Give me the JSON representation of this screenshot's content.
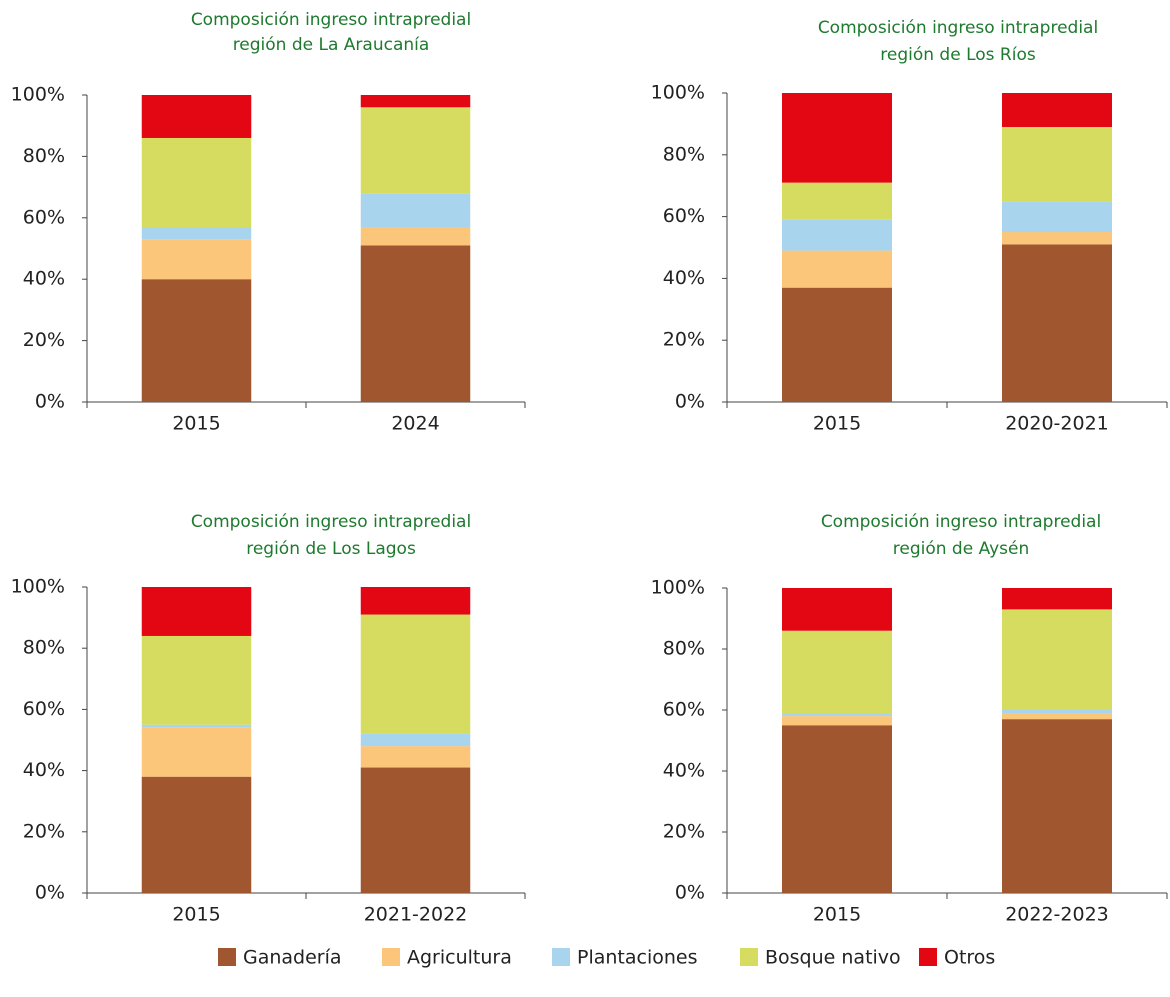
{
  "chart_data": [
    {
      "type": "stacked-bar",
      "title": [
        "Composición ingreso intrapredial",
        "región de La Araucanía"
      ],
      "categories": [
        "2015",
        "2024"
      ],
      "series": [
        {
          "name": "Ganadería",
          "color": "#a0572f",
          "values": [
            40,
            51
          ]
        },
        {
          "name": "Agricultura",
          "color": "#fbc57a",
          "values": [
            13,
            6
          ]
        },
        {
          "name": "Plantaciones",
          "color": "#a9d4ee",
          "values": [
            4,
            11
          ]
        },
        {
          "name": "Bosque nativo",
          "color": "#d5dc5f",
          "values": [
            29,
            28
          ]
        },
        {
          "name": "Otros",
          "color": "#e30613",
          "values": [
            14,
            4
          ]
        }
      ],
      "ylim": [
        0,
        100
      ],
      "yticks": [
        {
          "value": 0,
          "label": "0%"
        },
        {
          "value": 20,
          "label": "20%"
        },
        {
          "value": 40,
          "label": "40%"
        },
        {
          "value": 60,
          "label": "60%"
        },
        {
          "value": 80,
          "label": "80%"
        },
        {
          "value": 100,
          "label": "100%"
        }
      ]
    },
    {
      "type": "stacked-bar",
      "title": [
        "Composición ingreso intrapredial",
        "región de Los Ríos"
      ],
      "categories": [
        "2015",
        "2020-2021"
      ],
      "series": [
        {
          "name": "Ganadería",
          "color": "#a0572f",
          "values": [
            37,
            51
          ]
        },
        {
          "name": "Agricultura",
          "color": "#fbc57a",
          "values": [
            12,
            4
          ]
        },
        {
          "name": "Plantaciones",
          "color": "#a9d4ee",
          "values": [
            10,
            10
          ]
        },
        {
          "name": "Bosque nativo",
          "color": "#d5dc5f",
          "values": [
            12,
            24
          ]
        },
        {
          "name": "Otros",
          "color": "#e30613",
          "values": [
            29,
            11
          ]
        }
      ],
      "ylim": [
        0,
        100
      ],
      "yticks": [
        {
          "value": 0,
          "label": "0%"
        },
        {
          "value": 20,
          "label": "20%"
        },
        {
          "value": 40,
          "label": "40%"
        },
        {
          "value": 60,
          "label": "60%"
        },
        {
          "value": 80,
          "label": "80%"
        },
        {
          "value": 100,
          "label": "100%"
        }
      ]
    },
    {
      "type": "stacked-bar",
      "title": [
        "Composición ingreso intrapredial",
        "región de Los Lagos"
      ],
      "categories": [
        "2015",
        "2021-2022"
      ],
      "series": [
        {
          "name": "Ganadería",
          "color": "#a0572f",
          "values": [
            38,
            41
          ]
        },
        {
          "name": "Agricultura",
          "color": "#fbc57a",
          "values": [
            16,
            7
          ]
        },
        {
          "name": "Plantaciones",
          "color": "#a9d4ee",
          "values": [
            1,
            4
          ]
        },
        {
          "name": "Bosque nativo",
          "color": "#d5dc5f",
          "values": [
            29,
            39
          ]
        },
        {
          "name": "Otros",
          "color": "#e30613",
          "values": [
            16,
            9
          ]
        }
      ],
      "ylim": [
        0,
        100
      ],
      "yticks": [
        {
          "value": 0,
          "label": "0%"
        },
        {
          "value": 20,
          "label": "20%"
        },
        {
          "value": 40,
          "label": "40%"
        },
        {
          "value": 60,
          "label": "60%"
        },
        {
          "value": 80,
          "label": "80%"
        },
        {
          "value": 100,
          "label": "100%"
        }
      ]
    },
    {
      "type": "stacked-bar",
      "title": [
        "Composición ingreso intrapredial",
        "región de Aysén"
      ],
      "categories": [
        "2015",
        "2022-2023"
      ],
      "series": [
        {
          "name": "Ganadería",
          "color": "#a0572f",
          "values": [
            55,
            57
          ]
        },
        {
          "name": "Agricultura",
          "color": "#fbc57a",
          "values": [
            3,
            2
          ]
        },
        {
          "name": "Plantaciones",
          "color": "#a9d4ee",
          "values": [
            1,
            1
          ]
        },
        {
          "name": "Bosque nativo",
          "color": "#d5dc5f",
          "values": [
            27,
            33
          ]
        },
        {
          "name": "Otros",
          "color": "#e30613",
          "values": [
            14,
            7
          ]
        }
      ],
      "ylim": [
        0,
        100
      ],
      "yticks": [
        {
          "value": 0,
          "label": "0%"
        },
        {
          "value": 20,
          "label": "20%"
        },
        {
          "value": 40,
          "label": "40%"
        },
        {
          "value": 60,
          "label": "60%"
        },
        {
          "value": 80,
          "label": "80%"
        },
        {
          "value": 100,
          "label": "100%"
        }
      ]
    }
  ]
}
